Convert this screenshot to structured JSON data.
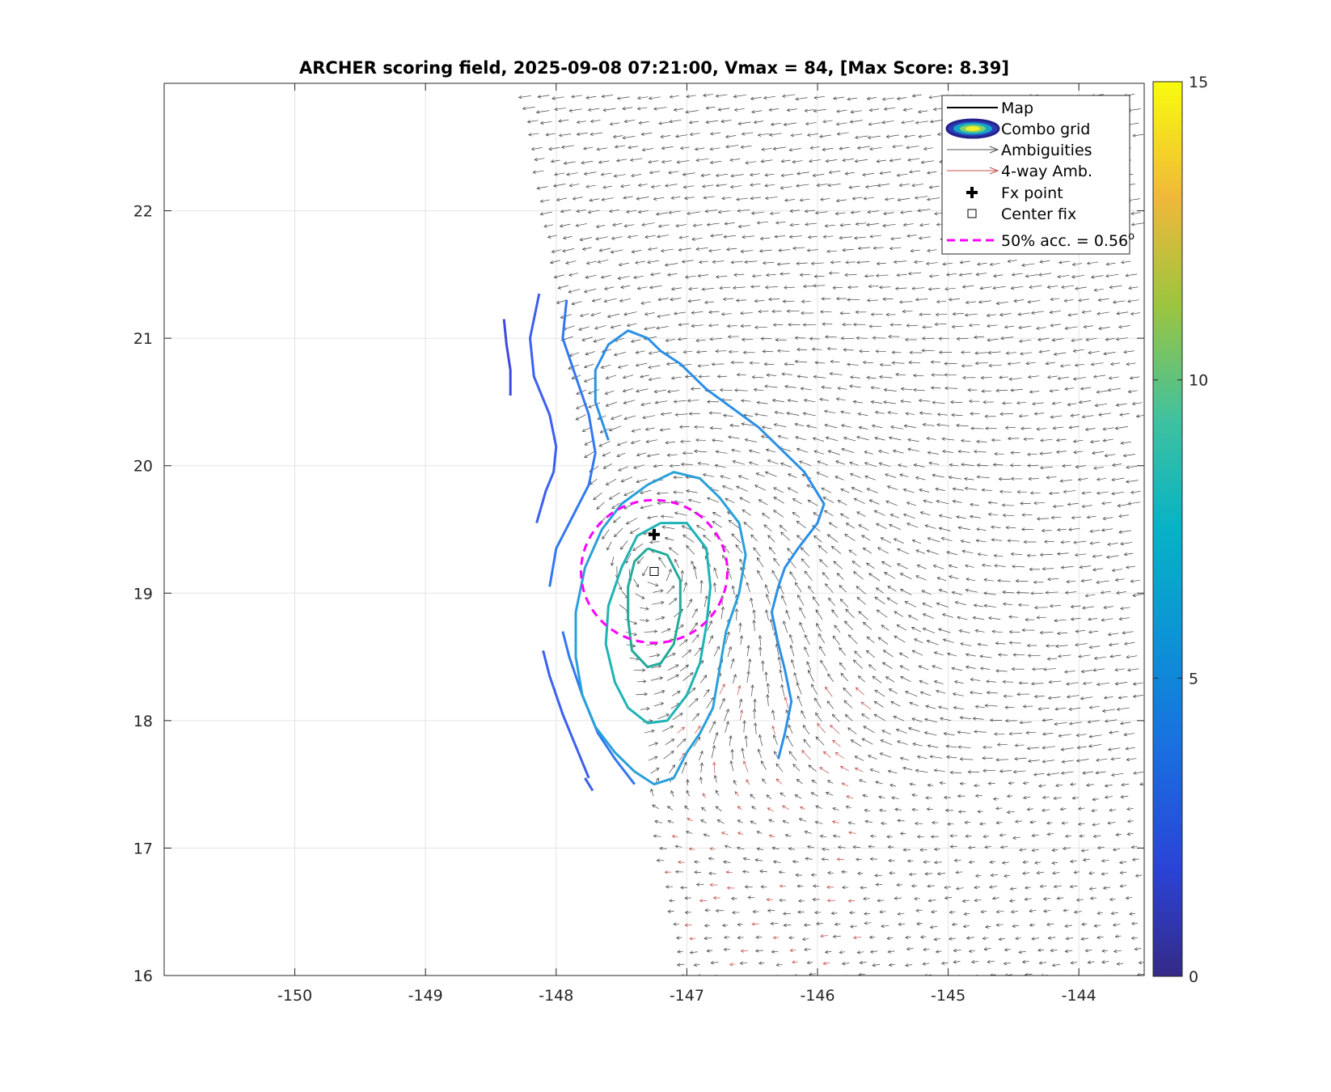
{
  "chart_data": {
    "type": "contour",
    "title": "ARCHER scoring field, 2025-09-08 07:21:00, Vmax = 84, [Max Score: 8.39]",
    "xlim": [
      -151,
      -143.5
    ],
    "ylim": [
      16,
      23
    ],
    "x_ticks": [
      -150,
      -149,
      -148,
      -147,
      -146,
      -145,
      -144
    ],
    "x_tick_labels": [
      "-150",
      "-149",
      "-148",
      "-147",
      "-146",
      "-145",
      "-144"
    ],
    "y_ticks": [
      16,
      17,
      18,
      19,
      20,
      21,
      22
    ],
    "y_tick_labels": [
      "16",
      "17",
      "18",
      "19",
      "20",
      "21",
      "22"
    ],
    "grid": true,
    "colorbar": {
      "range": [
        0,
        15
      ],
      "ticks": [
        0,
        5,
        10,
        15
      ],
      "tick_labels": [
        "0",
        "5",
        "10",
        "15"
      ],
      "colormap": "parula"
    },
    "legend": {
      "placement": "top-right",
      "entries": [
        {
          "label": "Map",
          "style": "line",
          "color": "#000000"
        },
        {
          "label": "Combo grid",
          "style": "ellipse"
        },
        {
          "label": "Ambiguities",
          "style": "arrow",
          "color": "#555555"
        },
        {
          "label": "4-way Amb.",
          "style": "arrow",
          "color": "#c0504d"
        },
        {
          "label": "Fx point",
          "style": "plus-marker"
        },
        {
          "label": "Center fix",
          "style": "square-marker"
        },
        {
          "label": "50% acc. = 0.56",
          "label_sup": "o",
          "style": "dashed",
          "color": "#ff00ff"
        }
      ]
    },
    "fx_point": {
      "lon": -147.25,
      "lat": 19.46
    },
    "center_fix": {
      "lon": -147.25,
      "lat": 19.17
    },
    "accuracy_circle": {
      "center_lon": -147.25,
      "center_lat": 19.17,
      "radius_deg": 0.56,
      "color": "#ff00ff"
    },
    "wind_field": {
      "center_lon": -147.25,
      "center_lat": 19.17,
      "swath_edge_top_lon": -148.2,
      "swath_edge_bottom_lon": -147.0,
      "arrow_color": "#444444",
      "four_way_color": "#c0504d"
    },
    "contours": [
      {
        "level": 2.0,
        "color": "#3f47e0",
        "points": [
          [
            -148.4,
            21.15
          ],
          [
            -148.38,
            20.95
          ],
          [
            -148.35,
            20.75
          ],
          [
            -148.35,
            20.55
          ]
        ]
      },
      {
        "level": 3.0,
        "color": "#3c5ff0",
        "points": [
          [
            -148.13,
            21.35
          ],
          [
            -148.2,
            21.0
          ],
          [
            -148.17,
            20.7
          ],
          [
            -148.05,
            20.4
          ],
          [
            -148.0,
            20.15
          ],
          [
            -148.02,
            19.95
          ],
          [
            -148.08,
            19.8
          ],
          [
            -148.15,
            19.55
          ]
        ]
      },
      {
        "level": 3.0,
        "color": "#3c5ff0",
        "points": [
          [
            -147.75,
            17.55
          ],
          [
            -147.85,
            17.8
          ],
          [
            -147.95,
            18.05
          ],
          [
            -148.05,
            18.35
          ],
          [
            -148.1,
            18.55
          ]
        ]
      },
      {
        "level": 3.0,
        "color": "#3c5ff0",
        "points": [
          [
            -147.72,
            17.45
          ],
          [
            -147.78,
            17.55
          ]
        ]
      },
      {
        "level": 3.5,
        "color": "#3278f0",
        "points": [
          [
            -147.92,
            21.3
          ],
          [
            -147.95,
            21.0
          ],
          [
            -147.85,
            20.7
          ],
          [
            -147.75,
            20.4
          ],
          [
            -147.7,
            20.1
          ],
          [
            -147.75,
            19.85
          ],
          [
            -147.9,
            19.55
          ],
          [
            -148.0,
            19.35
          ],
          [
            -148.05,
            19.05
          ]
        ]
      },
      {
        "level": 3.5,
        "color": "#3278f0",
        "points": [
          [
            -147.4,
            17.5
          ],
          [
            -147.55,
            17.7
          ],
          [
            -147.68,
            17.9
          ],
          [
            -147.8,
            18.2
          ],
          [
            -147.9,
            18.5
          ],
          [
            -147.95,
            18.7
          ]
        ]
      },
      {
        "level": 4.0,
        "color": "#2b8fe6",
        "points": [
          [
            -147.6,
            20.2
          ],
          [
            -147.7,
            20.5
          ],
          [
            -147.7,
            20.75
          ],
          [
            -147.6,
            20.95
          ],
          [
            -147.45,
            21.06
          ],
          [
            -147.3,
            21.0
          ],
          [
            -147.2,
            20.9
          ],
          [
            -147.05,
            20.8
          ],
          [
            -146.85,
            20.6
          ],
          [
            -146.65,
            20.45
          ],
          [
            -146.45,
            20.3
          ],
          [
            -146.3,
            20.15
          ],
          [
            -146.1,
            19.95
          ],
          [
            -145.95,
            19.7
          ],
          [
            -146.0,
            19.55
          ],
          [
            -146.15,
            19.35
          ],
          [
            -146.25,
            19.2
          ],
          [
            -146.3,
            19.05
          ],
          [
            -146.35,
            18.85
          ],
          [
            -146.3,
            18.6
          ],
          [
            -146.25,
            18.4
          ],
          [
            -146.2,
            18.15
          ],
          [
            -146.25,
            17.9
          ],
          [
            -146.3,
            17.7
          ]
        ]
      },
      {
        "level": 5.0,
        "color": "#2aa0da",
        "points": [
          [
            -147.3,
            19.85
          ],
          [
            -147.1,
            19.95
          ],
          [
            -146.9,
            19.9
          ],
          [
            -146.75,
            19.75
          ],
          [
            -146.6,
            19.55
          ],
          [
            -146.55,
            19.3
          ],
          [
            -146.6,
            19.0
          ],
          [
            -146.7,
            18.7
          ],
          [
            -146.75,
            18.4
          ],
          [
            -146.8,
            18.1
          ],
          [
            -146.9,
            17.9
          ],
          [
            -147.0,
            17.75
          ],
          [
            -147.1,
            17.55
          ],
          [
            -147.25,
            17.5
          ],
          [
            -147.4,
            17.6
          ],
          [
            -147.55,
            17.75
          ],
          [
            -147.7,
            17.95
          ],
          [
            -147.8,
            18.2
          ],
          [
            -147.85,
            18.5
          ],
          [
            -147.85,
            18.85
          ],
          [
            -147.78,
            19.2
          ],
          [
            -147.65,
            19.5
          ],
          [
            -147.5,
            19.7
          ],
          [
            -147.3,
            19.85
          ]
        ]
      },
      {
        "level": 6.0,
        "color": "#1fb3b6",
        "points": [
          [
            -147.2,
            19.55
          ],
          [
            -147.0,
            19.55
          ],
          [
            -146.85,
            19.35
          ],
          [
            -146.82,
            19.05
          ],
          [
            -146.85,
            18.75
          ],
          [
            -146.9,
            18.45
          ],
          [
            -147.0,
            18.2
          ],
          [
            -147.15,
            18.0
          ],
          [
            -147.3,
            17.98
          ],
          [
            -147.45,
            18.1
          ],
          [
            -147.55,
            18.3
          ],
          [
            -147.62,
            18.6
          ],
          [
            -147.6,
            18.9
          ],
          [
            -147.5,
            19.2
          ],
          [
            -147.38,
            19.45
          ],
          [
            -147.2,
            19.55
          ]
        ]
      },
      {
        "level": 7.0,
        "color": "#23aa9a",
        "points": [
          [
            -147.3,
            19.35
          ],
          [
            -147.15,
            19.3
          ],
          [
            -147.05,
            19.1
          ],
          [
            -147.05,
            18.85
          ],
          [
            -147.1,
            18.6
          ],
          [
            -147.2,
            18.45
          ],
          [
            -147.3,
            18.42
          ],
          [
            -147.42,
            18.55
          ],
          [
            -147.45,
            18.8
          ],
          [
            -147.45,
            19.05
          ],
          [
            -147.4,
            19.25
          ],
          [
            -147.3,
            19.35
          ]
        ]
      }
    ]
  }
}
